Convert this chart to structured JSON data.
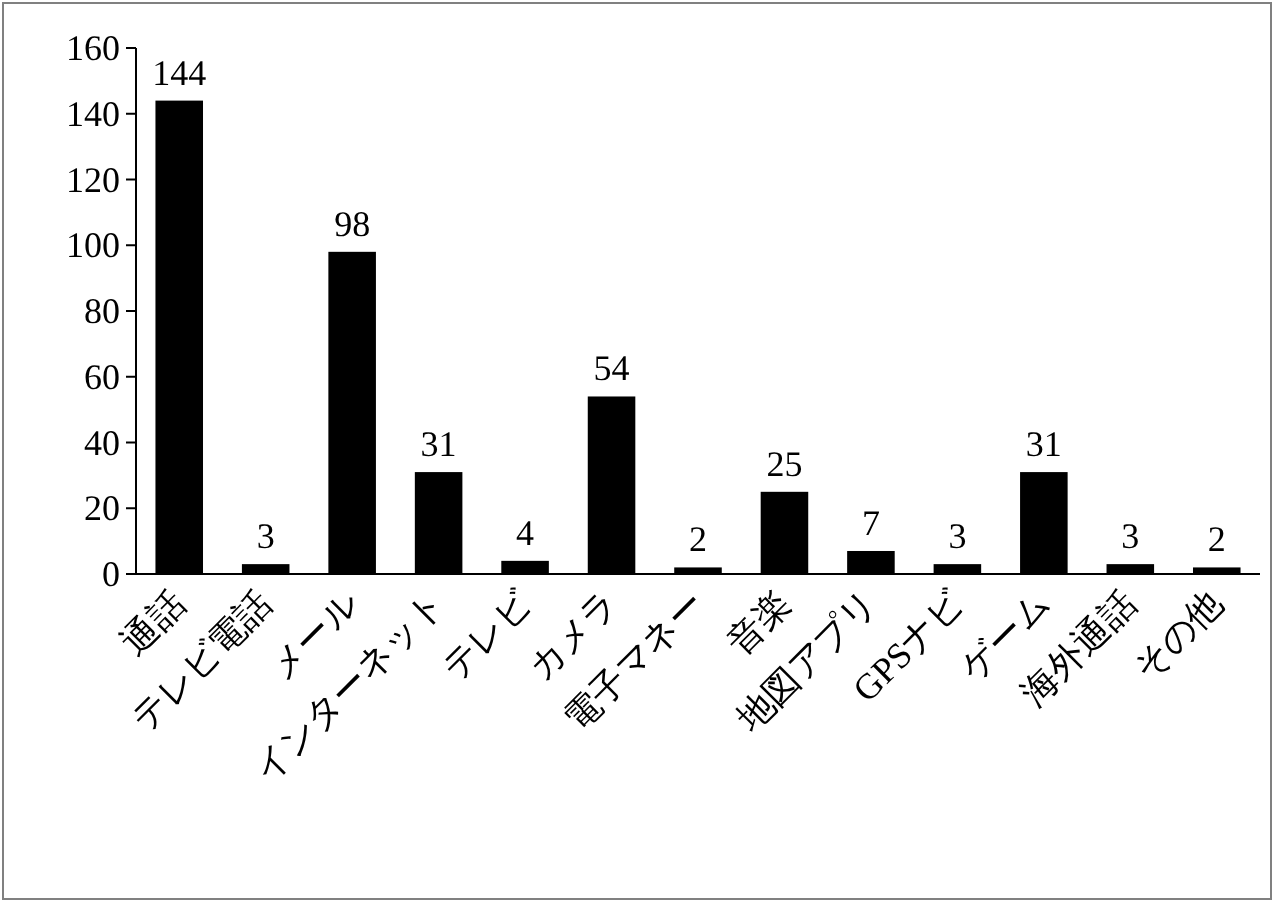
{
  "chart_data": {
    "type": "bar",
    "categories": [
      "通話",
      "テレビ電話",
      "メール",
      "インターネット",
      "テレビ",
      "カメラ",
      "電子マネー",
      "音楽",
      "地図アプリ",
      "GPSナビ",
      "ゲーム",
      "海外通話",
      "その他"
    ],
    "values": [
      144,
      3,
      98,
      31,
      4,
      54,
      2,
      25,
      7,
      3,
      31,
      3,
      2
    ],
    "color": "#000000",
    "ylim": [
      0,
      160
    ],
    "yticks": [
      0,
      20,
      40,
      60,
      80,
      100,
      120,
      140,
      160
    ],
    "data_labels": true
  }
}
